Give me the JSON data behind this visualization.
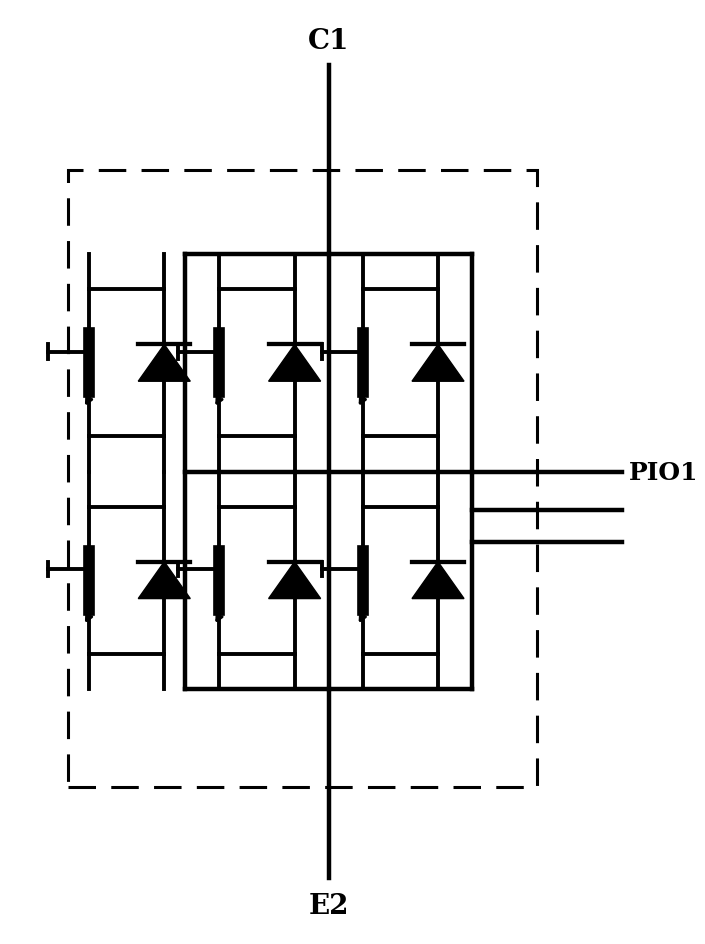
{
  "bg_color": "#ffffff",
  "line_color": "#000000",
  "label_C1": "C1",
  "label_E2": "E2",
  "label_PIO1": "PIO1",
  "fig_width": 7.05,
  "fig_height": 9.45,
  "dpi": 100,
  "font_size_label": 20,
  "font_size_pio": 18
}
